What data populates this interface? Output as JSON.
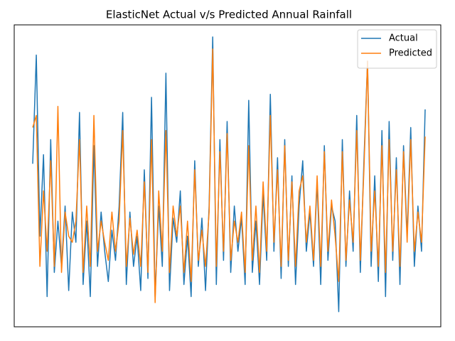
{
  "chart_data": {
    "type": "line",
    "title": "ElasticNet Actual v/s Predicted Annual Rainfall",
    "ylim": [
      0,
      100
    ],
    "legend": "upper right",
    "series": [
      {
        "name": "Actual",
        "color": "#1f77b4",
        "values": [
          54,
          90,
          30,
          57,
          10,
          62,
          18,
          35,
          20,
          40,
          12,
          38,
          28,
          71,
          14,
          35,
          10,
          60,
          20,
          38,
          25,
          15,
          32,
          22,
          40,
          71,
          14,
          38,
          20,
          30,
          12,
          52,
          16,
          76,
          10,
          40,
          20,
          84,
          12,
          36,
          28,
          45,
          14,
          30,
          10,
          55,
          20,
          36,
          12,
          40,
          96,
          14,
          62,
          22,
          68,
          18,
          40,
          25,
          36,
          14,
          75,
          18,
          35,
          14,
          44,
          22,
          77,
          25,
          56,
          16,
          62,
          20,
          50,
          14,
          40,
          55,
          25,
          38,
          20,
          48,
          14,
          60,
          22,
          40,
          35,
          5,
          62,
          20,
          45,
          25,
          70,
          18,
          55,
          88,
          20,
          50,
          15,
          65,
          10,
          68,
          22,
          56,
          14,
          60,
          30,
          66,
          20,
          40,
          25,
          72
        ]
      },
      {
        "name": "Predicted",
        "color": "#ff7f0e",
        "values": [
          66,
          70,
          20,
          45,
          25,
          55,
          20,
          73,
          18,
          38,
          30,
          28,
          35,
          62,
          18,
          40,
          20,
          70,
          25,
          35,
          28,
          22,
          38,
          25,
          35,
          65,
          20,
          36,
          24,
          32,
          20,
          48,
          18,
          62,
          8,
          45,
          25,
          65,
          18,
          40,
          30,
          40,
          18,
          35,
          15,
          52,
          22,
          32,
          20,
          38,
          92,
          20,
          58,
          25,
          64,
          22,
          35,
          28,
          38,
          18,
          60,
          22,
          40,
          18,
          48,
          25,
          70,
          28,
          52,
          20,
          60,
          22,
          48,
          20,
          45,
          50,
          28,
          40,
          22,
          50,
          20,
          58,
          25,
          42,
          30,
          15,
          58,
          22,
          42,
          28,
          65,
          22,
          52,
          88,
          25,
          45,
          20,
          60,
          18,
          62,
          25,
          52,
          20,
          58,
          28,
          62,
          25,
          38,
          28,
          63
        ]
      }
    ]
  }
}
